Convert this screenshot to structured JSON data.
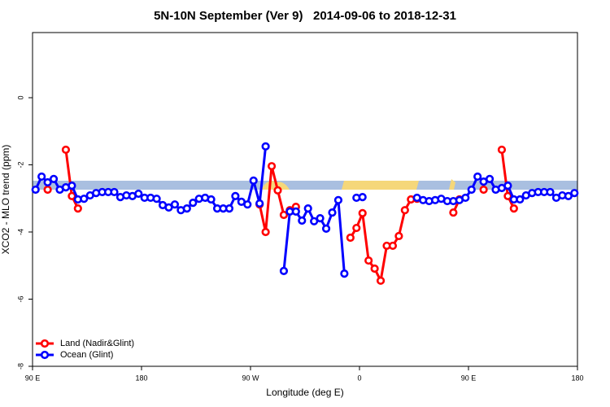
{
  "chart_data": {
    "type": "line",
    "title": "5N-10N September (Ver 9)   2014-09-06 to 2018-12-31",
    "x_label": "Longitude (deg E)",
    "y_label": "XCO2 - MLO trend (ppm)",
    "xlim": [
      90,
      540
    ],
    "ylim": [
      -8,
      1.94
    ],
    "xticks": [
      {
        "value": 90,
        "label": "90 E"
      },
      180,
      {
        "value": 270,
        "label": "90 W"
      },
      {
        "value": 360,
        "label": "0"
      },
      {
        "value": 450,
        "label": "90 E"
      },
      {
        "value": 540,
        "label": "180"
      }
    ],
    "yticks": [
      0,
      -2,
      -4,
      -6,
      -8
    ],
    "legend": "bottom-left",
    "x": [
      92.5,
      97.5,
      102.5,
      107.5,
      112.5,
      117.5,
      122.5,
      127.5,
      132.5,
      137.5,
      142.5,
      147.5,
      152.5,
      157.5,
      162.5,
      167.5,
      172.5,
      177.5,
      182.5,
      187.5,
      192.5,
      197.5,
      202.5,
      207.5,
      212.5,
      217.5,
      222.5,
      227.5,
      232.5,
      237.5,
      242.5,
      247.5,
      252.5,
      257.5,
      262.5,
      267.5,
      272.5,
      277.5,
      282.5,
      287.5,
      292.5,
      297.5,
      302.5,
      307.5,
      312.5,
      317.5,
      322.5,
      327.5,
      332.5,
      337.5,
      342.5,
      347.5,
      352.5,
      357.5,
      362.5,
      367.5,
      372.5,
      377.5,
      382.5,
      387.5,
      392.5,
      397.5,
      402.5,
      407.5,
      412.5,
      417.5,
      422.5,
      427.5,
      432.5,
      437.5,
      442.5,
      447.5,
      452.5,
      457.5,
      462.5,
      467.5,
      472.5,
      477.5,
      482.5,
      487.5,
      492.5,
      497.5,
      502.5,
      507.5,
      512.5,
      517.5,
      522.5,
      527.5,
      532.5,
      537.5
    ],
    "series": [
      {
        "name": "Land (Nadir&Glint)",
        "color": "#ff0000",
        "values": [
          null,
          null,
          -2.74,
          null,
          null,
          -1.55,
          -2.93,
          -3.3,
          null,
          null,
          null,
          null,
          null,
          null,
          null,
          null,
          null,
          null,
          null,
          null,
          null,
          null,
          null,
          null,
          null,
          null,
          null,
          null,
          null,
          null,
          null,
          null,
          null,
          null,
          null,
          null,
          null,
          -3.18,
          -4.0,
          -2.04,
          -2.76,
          -3.49,
          -3.35,
          -3.25,
          null,
          null,
          null,
          null,
          null,
          null,
          null,
          null,
          -4.17,
          -3.88,
          -3.44,
          -4.85,
          -5.09,
          -5.45,
          -4.41,
          -4.41,
          -4.12,
          -3.35,
          -3.03,
          -3.01,
          null,
          null,
          null,
          null,
          null,
          -3.42,
          -3.03,
          null,
          null,
          null,
          -2.74,
          null,
          null,
          -1.55,
          -2.93,
          -3.3,
          null,
          null,
          null,
          null,
          null,
          null,
          null,
          null,
          null,
          null
        ]
      },
      {
        "name": "Ocean (Glint)",
        "color": "#0000ff",
        "values": [
          -2.74,
          -2.35,
          -2.52,
          -2.42,
          -2.74,
          -2.67,
          -2.62,
          -3.03,
          -3.01,
          -2.91,
          -2.84,
          -2.81,
          -2.81,
          -2.81,
          -2.96,
          -2.91,
          -2.93,
          -2.86,
          -2.98,
          -2.98,
          -3.01,
          -3.2,
          -3.27,
          -3.18,
          -3.35,
          -3.3,
          -3.13,
          -3.01,
          -2.98,
          -3.03,
          -3.3,
          -3.3,
          -3.3,
          -2.93,
          -3.1,
          -3.18,
          -2.47,
          -3.15,
          -1.45,
          null,
          null,
          -5.16,
          -3.39,
          -3.39,
          -3.66,
          -3.3,
          -3.68,
          -3.59,
          -3.9,
          -3.42,
          -3.05,
          -5.24,
          null,
          -2.98,
          -2.96,
          null,
          null,
          null,
          null,
          null,
          null,
          null,
          null,
          -2.98,
          -3.05,
          -3.08,
          -3.05,
          -3.01,
          -3.08,
          -3.08,
          -3.05,
          -2.98,
          -2.74,
          -2.35,
          -2.5,
          -2.42,
          -2.74,
          -2.69,
          -2.62,
          -3.03,
          -3.03,
          -2.91,
          -2.84,
          -2.81,
          -2.81,
          -2.81,
          -2.98,
          -2.91,
          -2.93,
          -2.84
        ]
      }
    ]
  }
}
